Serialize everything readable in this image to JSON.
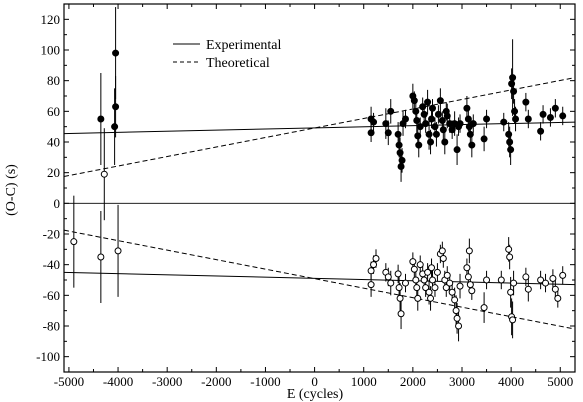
{
  "chart_data": {
    "type": "scatter",
    "xlabel": "E (cycles)",
    "ylabel": "(O-C) (s)",
    "xlim": [
      -5100,
      5300
    ],
    "ylim": [
      -110,
      130
    ],
    "xticks": [
      -5000,
      -4000,
      -3000,
      -2000,
      -1000,
      0,
      1000,
      2000,
      3000,
      4000,
      5000
    ],
    "yticks": [
      -100,
      -80,
      -60,
      -40,
      -20,
      0,
      20,
      40,
      60,
      80,
      100,
      120
    ],
    "xtick_labels": [
      "-5000",
      "-4000",
      "-3000",
      "-2000",
      "-1000",
      "0",
      "1000",
      "2000",
      "3000",
      "4000",
      "5000"
    ],
    "ytick_labels": [
      "-100",
      "-80",
      "-60",
      "-40",
      "-20",
      "0",
      "20",
      "40",
      "60",
      "80",
      "100",
      "120"
    ],
    "legend_position": "top-center",
    "lines": [
      {
        "name": "Experimental",
        "style": "solid",
        "segments": [
          {
            "x": [
              -5100,
              5300
            ],
            "y": [
              45.5,
              53.0
            ]
          },
          {
            "x": [
              -5100,
              5300
            ],
            "y": [
              -45.0,
              -53.0
            ]
          }
        ]
      },
      {
        "name": "Theoretical",
        "style": "dashed",
        "segments": [
          {
            "x": [
              -5100,
              5300
            ],
            "y": [
              17.5,
              82.0
            ]
          },
          {
            "x": [
              -5100,
              5300
            ],
            "y": [
              -17.5,
              -82.0
            ]
          }
        ]
      }
    ],
    "series": [
      {
        "marker": "filled-circle",
        "points": [
          {
            "x": -4350,
            "y": 55,
            "err": 30
          },
          {
            "x": -4050,
            "y": 98,
            "err": 30
          },
          {
            "x": -4050,
            "y": 63,
            "err": 20
          },
          {
            "x": -4070,
            "y": 50,
            "err": 25
          },
          {
            "x": 1150,
            "y": 55,
            "err": 8
          },
          {
            "x": 1150,
            "y": 46,
            "err": 6
          },
          {
            "x": 1200,
            "y": 53,
            "err": 6
          },
          {
            "x": 1450,
            "y": 52,
            "err": 10
          },
          {
            "x": 1500,
            "y": 46,
            "err": 8
          },
          {
            "x": 1550,
            "y": 60,
            "err": 8
          },
          {
            "x": 1700,
            "y": 45,
            "err": 8
          },
          {
            "x": 1720,
            "y": 38,
            "err": 8
          },
          {
            "x": 1740,
            "y": 33,
            "err": 10
          },
          {
            "x": 1760,
            "y": 24,
            "err": 10
          },
          {
            "x": 1780,
            "y": 28,
            "err": 8
          },
          {
            "x": 1800,
            "y": 52,
            "err": 8
          },
          {
            "x": 1850,
            "y": 55,
            "err": 6
          },
          {
            "x": 2000,
            "y": 70,
            "err": 8
          },
          {
            "x": 2030,
            "y": 67,
            "err": 6
          },
          {
            "x": 2060,
            "y": 60,
            "err": 6
          },
          {
            "x": 2080,
            "y": 54,
            "err": 8
          },
          {
            "x": 2100,
            "y": 44,
            "err": 8
          },
          {
            "x": 2120,
            "y": 38,
            "err": 8
          },
          {
            "x": 2150,
            "y": 50,
            "err": 6
          },
          {
            "x": 2200,
            "y": 63,
            "err": 6
          },
          {
            "x": 2230,
            "y": 58,
            "err": 6
          },
          {
            "x": 2260,
            "y": 52,
            "err": 6
          },
          {
            "x": 2300,
            "y": 66,
            "err": 8
          },
          {
            "x": 2330,
            "y": 45,
            "err": 10
          },
          {
            "x": 2360,
            "y": 40,
            "err": 8
          },
          {
            "x": 2380,
            "y": 55,
            "err": 6
          },
          {
            "x": 2400,
            "y": 62,
            "err": 6
          },
          {
            "x": 2450,
            "y": 50,
            "err": 6
          },
          {
            "x": 2480,
            "y": 45,
            "err": 8
          },
          {
            "x": 2520,
            "y": 58,
            "err": 6
          },
          {
            "x": 2560,
            "y": 67,
            "err": 8
          },
          {
            "x": 2600,
            "y": 54,
            "err": 6
          },
          {
            "x": 2620,
            "y": 48,
            "err": 8
          },
          {
            "x": 2650,
            "y": 40,
            "err": 8
          },
          {
            "x": 2680,
            "y": 60,
            "err": 6
          },
          {
            "x": 2700,
            "y": 57,
            "err": 8
          },
          {
            "x": 2750,
            "y": 52,
            "err": 6
          },
          {
            "x": 2800,
            "y": 48,
            "err": 6
          },
          {
            "x": 2850,
            "y": 52,
            "err": 8
          },
          {
            "x": 2900,
            "y": 35,
            "err": 10
          },
          {
            "x": 2930,
            "y": 50,
            "err": 6
          },
          {
            "x": 2960,
            "y": 52,
            "err": 6
          },
          {
            "x": 3100,
            "y": 62,
            "err": 8
          },
          {
            "x": 3130,
            "y": 55,
            "err": 8
          },
          {
            "x": 3150,
            "y": 50,
            "err": 6
          },
          {
            "x": 3170,
            "y": 45,
            "err": 8
          },
          {
            "x": 3200,
            "y": 38,
            "err": 8
          },
          {
            "x": 3230,
            "y": 52,
            "err": 6
          },
          {
            "x": 3450,
            "y": 42,
            "err": 8
          },
          {
            "x": 3500,
            "y": 55,
            "err": 6
          },
          {
            "x": 3850,
            "y": 53,
            "err": 6
          },
          {
            "x": 3950,
            "y": 45,
            "err": 8
          },
          {
            "x": 3970,
            "y": 40,
            "err": 10
          },
          {
            "x": 3990,
            "y": 35,
            "err": 10
          },
          {
            "x": 4010,
            "y": 78,
            "err": 10
          },
          {
            "x": 4030,
            "y": 82,
            "err": 25
          },
          {
            "x": 4050,
            "y": 73,
            "err": 8
          },
          {
            "x": 4070,
            "y": 60,
            "err": 8
          },
          {
            "x": 4090,
            "y": 55,
            "err": 8
          },
          {
            "x": 4300,
            "y": 66,
            "err": 6
          },
          {
            "x": 4350,
            "y": 55,
            "err": 6
          },
          {
            "x": 4600,
            "y": 47,
            "err": 6
          },
          {
            "x": 4650,
            "y": 58,
            "err": 6
          },
          {
            "x": 4800,
            "y": 56,
            "err": 6
          },
          {
            "x": 4900,
            "y": 62,
            "err": 6
          },
          {
            "x": 5050,
            "y": 57,
            "err": 6
          }
        ]
      },
      {
        "marker": "open-circle",
        "points": [
          {
            "x": -4900,
            "y": -25,
            "err": 30
          },
          {
            "x": -4350,
            "y": -35,
            "err": 30
          },
          {
            "x": -4280,
            "y": 19,
            "err": 30
          },
          {
            "x": -4000,
            "y": -31,
            "err": 30
          },
          {
            "x": 1150,
            "y": -44,
            "err": 6
          },
          {
            "x": 1150,
            "y": -53,
            "err": 8
          },
          {
            "x": 1200,
            "y": -40,
            "err": 6
          },
          {
            "x": 1250,
            "y": -36,
            "err": 6
          },
          {
            "x": 1450,
            "y": -45,
            "err": 6
          },
          {
            "x": 1500,
            "y": -48,
            "err": 6
          },
          {
            "x": 1550,
            "y": -52,
            "err": 8
          },
          {
            "x": 1700,
            "y": -46,
            "err": 6
          },
          {
            "x": 1720,
            "y": -55,
            "err": 8
          },
          {
            "x": 1740,
            "y": -62,
            "err": 10
          },
          {
            "x": 1760,
            "y": -72,
            "err": 10
          },
          {
            "x": 1850,
            "y": -52,
            "err": 6
          },
          {
            "x": 2000,
            "y": -38,
            "err": 6
          },
          {
            "x": 2030,
            "y": -43,
            "err": 6
          },
          {
            "x": 2060,
            "y": -50,
            "err": 6
          },
          {
            "x": 2080,
            "y": -55,
            "err": 6
          },
          {
            "x": 2100,
            "y": -62,
            "err": 8
          },
          {
            "x": 2150,
            "y": -40,
            "err": 6
          },
          {
            "x": 2200,
            "y": -46,
            "err": 6
          },
          {
            "x": 2230,
            "y": -50,
            "err": 6
          },
          {
            "x": 2260,
            "y": -55,
            "err": 6
          },
          {
            "x": 2300,
            "y": -45,
            "err": 6
          },
          {
            "x": 2330,
            "y": -58,
            "err": 8
          },
          {
            "x": 2360,
            "y": -62,
            "err": 8
          },
          {
            "x": 2380,
            "y": -42,
            "err": 6
          },
          {
            "x": 2400,
            "y": -50,
            "err": 6
          },
          {
            "x": 2450,
            "y": -55,
            "err": 6
          },
          {
            "x": 2500,
            "y": -45,
            "err": 6
          },
          {
            "x": 2560,
            "y": -33,
            "err": 6
          },
          {
            "x": 2600,
            "y": -31,
            "err": 6
          },
          {
            "x": 2620,
            "y": -36,
            "err": 6
          },
          {
            "x": 2650,
            "y": -50,
            "err": 6
          },
          {
            "x": 2680,
            "y": -55,
            "err": 6
          },
          {
            "x": 2700,
            "y": -47,
            "err": 6
          },
          {
            "x": 2750,
            "y": -52,
            "err": 6
          },
          {
            "x": 2800,
            "y": -58,
            "err": 6
          },
          {
            "x": 2850,
            "y": -63,
            "err": 8
          },
          {
            "x": 2880,
            "y": -70,
            "err": 10
          },
          {
            "x": 2900,
            "y": -75,
            "err": 10
          },
          {
            "x": 2930,
            "y": -80,
            "err": 10
          },
          {
            "x": 2960,
            "y": -54,
            "err": 8
          },
          {
            "x": 3100,
            "y": -42,
            "err": 6
          },
          {
            "x": 3130,
            "y": -48,
            "err": 6
          },
          {
            "x": 3150,
            "y": -31,
            "err": 8
          },
          {
            "x": 3170,
            "y": -53,
            "err": 6
          },
          {
            "x": 3200,
            "y": -57,
            "err": 6
          },
          {
            "x": 3450,
            "y": -68,
            "err": 10
          },
          {
            "x": 3500,
            "y": -50,
            "err": 6
          },
          {
            "x": 3800,
            "y": -50,
            "err": 6
          },
          {
            "x": 3950,
            "y": -30,
            "err": 8
          },
          {
            "x": 3970,
            "y": -35,
            "err": 8
          },
          {
            "x": 3990,
            "y": -58,
            "err": 10
          },
          {
            "x": 4010,
            "y": -74,
            "err": 12
          },
          {
            "x": 4030,
            "y": -76,
            "err": 12
          },
          {
            "x": 4050,
            "y": -52,
            "err": 8
          },
          {
            "x": 4300,
            "y": -48,
            "err": 6
          },
          {
            "x": 4350,
            "y": -56,
            "err": 8
          },
          {
            "x": 4600,
            "y": -50,
            "err": 6
          },
          {
            "x": 4700,
            "y": -52,
            "err": 6
          },
          {
            "x": 4850,
            "y": -49,
            "err": 6
          },
          {
            "x": 4900,
            "y": -56,
            "err": 6
          },
          {
            "x": 4950,
            "y": -62,
            "err": 6
          },
          {
            "x": 5050,
            "y": -47,
            "err": 6
          }
        ]
      }
    ]
  }
}
